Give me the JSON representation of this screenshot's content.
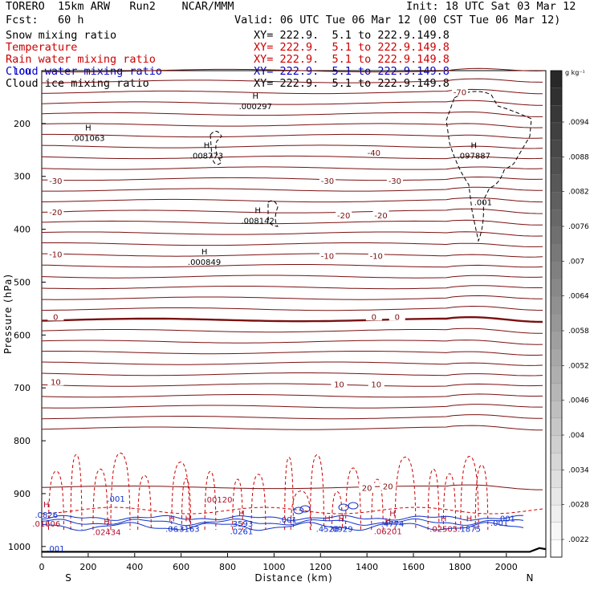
{
  "header": {
    "model": "TORERO  15km ARW   Run2    NCAR/MMM",
    "init": "Init: 18 UTC Sat 03 Mar 12",
    "fcst": "Fcst:   60 h",
    "valid": "Valid: 06 UTC Tue 06 Mar 12 (00 CST Tue 06 Mar 12)"
  },
  "legend": [
    {
      "label": "Snow mixing ratio",
      "xy": "XY= 222.9.  5.1 to 222.9.149.8",
      "color": "#000000"
    },
    {
      "label": "Temperature",
      "xy": "XY= 222.9.  5.1 to 222.9.149.8",
      "color": "#cc0000"
    },
    {
      "label": "Rain water mixing ratio",
      "xy": "XY= 222.9.  5.1 to 222.9.149.8",
      "color": "#cc0000"
    },
    {
      "label": "Cloud water mixing ratio",
      "xy": "XY= 222.9.  5.1 to 222.9.149.8",
      "color": "#0000cc"
    },
    {
      "label": "Cloud ice mixing ratio",
      "xy": "XY= 222.9.  5.1 to 222.9.149.8",
      "color": "#000000"
    }
  ],
  "chart_data": {
    "type": "line",
    "xlabel": "Distance (km)",
    "ylabel": "Pressure (hPa)",
    "xlim": [
      0,
      2170
    ],
    "ylim": [
      1020,
      100
    ],
    "x_ticks": [
      0,
      200,
      400,
      600,
      800,
      1000,
      1200,
      1400,
      1600,
      1800,
      2000
    ],
    "y_ticks": [
      200,
      300,
      400,
      500,
      600,
      700,
      800,
      900,
      1000
    ],
    "y_top_tick_label": "100",
    "endpoint_labels": {
      "left": "S",
      "right": "N"
    },
    "temperature_contour_labels": [
      {
        "x": 1800,
        "p": 140,
        "text": "-70"
      },
      {
        "x": 1430,
        "p": 255,
        "text": "-40"
      },
      {
        "x": 60,
        "p": 308,
        "text": "-30"
      },
      {
        "x": 1230,
        "p": 308,
        "text": "-30"
      },
      {
        "x": 1520,
        "p": 308,
        "text": "-30"
      },
      {
        "x": 60,
        "p": 367,
        "text": "-20"
      },
      {
        "x": 1300,
        "p": 373,
        "text": "-20"
      },
      {
        "x": 1460,
        "p": 373,
        "text": "-20"
      },
      {
        "x": 60,
        "p": 447,
        "text": "-10"
      },
      {
        "x": 1230,
        "p": 450,
        "text": "-10"
      },
      {
        "x": 1440,
        "p": 450,
        "text": "-10"
      },
      {
        "x": 60,
        "p": 565,
        "text": "0"
      },
      {
        "x": 1430,
        "p": 565,
        "text": "0"
      },
      {
        "x": 1530,
        "p": 565,
        "text": "0"
      },
      {
        "x": 60,
        "p": 688,
        "text": "10"
      },
      {
        "x": 1280,
        "p": 693,
        "text": "10"
      },
      {
        "x": 1440,
        "p": 693,
        "text": "10"
      },
      {
        "x": 1400,
        "p": 889,
        "text": "20"
      },
      {
        "x": 1490,
        "p": 886,
        "text": "20"
      }
    ],
    "extrema_labels": [
      {
        "x": 920,
        "p": 168,
        "text": ".000297",
        "marker": "H"
      },
      {
        "x": 200,
        "p": 228,
        "text": ".001063",
        "marker": "H"
      },
      {
        "x": 710,
        "p": 262,
        "text": ".008773",
        "marker": "H"
      },
      {
        "x": 1860,
        "p": 262,
        "text": ".097887",
        "marker": "H"
      },
      {
        "x": 1900,
        "p": 350,
        "text": ".001",
        "marker": ""
      },
      {
        "x": 930,
        "p": 385,
        "text": ".008142",
        "marker": "H"
      },
      {
        "x": 700,
        "p": 463,
        "text": ".000849",
        "marker": "H"
      },
      {
        "x": 320,
        "p": 911,
        "text": ".001",
        "marker": ""
      },
      {
        "x": 760,
        "p": 912,
        "text": ".00120",
        "marker": ""
      },
      {
        "x": 20,
        "p": 941,
        "text": ".0826",
        "marker": "H"
      },
      {
        "x": 20,
        "p": 958,
        "text": ".01606",
        "marker": ""
      },
      {
        "x": 280,
        "p": 974,
        "text": ".02434",
        "marker": "H"
      },
      {
        "x": 560,
        "p": 968,
        "text": ".06",
        "marker": "H"
      },
      {
        "x": 630,
        "p": 968,
        "text": ".3163",
        "marker": "H"
      },
      {
        "x": 860,
        "p": 958,
        "text": ".3593",
        "marker": "H"
      },
      {
        "x": 860,
        "p": 972,
        "text": ".0261",
        "marker": ""
      },
      {
        "x": 1060,
        "p": 950,
        "text": ".001",
        "marker": ""
      },
      {
        "x": 1230,
        "p": 968,
        "text": ".4526",
        "marker": "H"
      },
      {
        "x": 1290,
        "p": 968,
        "text": ".0929",
        "marker": "H"
      },
      {
        "x": 1510,
        "p": 958,
        "text": ".4774",
        "marker": "H"
      },
      {
        "x": 1490,
        "p": 972,
        "text": ".06201",
        "marker": "H"
      },
      {
        "x": 1730,
        "p": 968,
        "text": ".02505",
        "marker": "H"
      },
      {
        "x": 1840,
        "p": 968,
        "text": ".1875",
        "marker": "H"
      },
      {
        "x": 1970,
        "p": 956,
        "text": ".001",
        "marker": ""
      },
      {
        "x": 2000,
        "p": 948,
        "text": ".001",
        "marker": ""
      },
      {
        "x": 60,
        "p": 1005,
        "text": ".001",
        "marker": ""
      }
    ],
    "colorbar": {
      "unit": "g kg⁻¹",
      "labels": [
        ".0094",
        ".0088",
        ".0082",
        ".0076",
        ".007",
        ".0064",
        ".0058",
        ".0052",
        ".0046",
        ".004",
        ".0034",
        ".0028",
        ".0022"
      ]
    },
    "grid": false
  }
}
